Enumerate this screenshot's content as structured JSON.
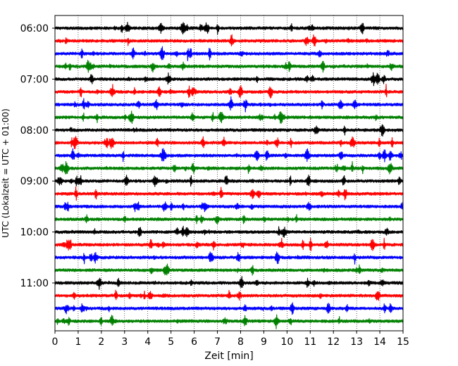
{
  "chart_data": {
    "type": "line",
    "title": "",
    "xlabel": "Zeit  [min]",
    "ylabel": "UTC (Lokalzeit = UTC + 01:00)",
    "xlim": [
      0,
      15
    ],
    "x_ticks": [
      "0",
      "1",
      "2",
      "3",
      "4",
      "5",
      "6",
      "7",
      "8",
      "9",
      "10",
      "11",
      "12",
      "13",
      "14",
      "15"
    ],
    "y_ticks": [
      "06:00",
      "07:00",
      "08:00",
      "09:00",
      "10:00",
      "11:00"
    ],
    "x_grid": "dotted vertical lines at each minute",
    "trace_interval_min": 15,
    "color_cycle": [
      "#000000",
      "#ff0000",
      "#0000ff",
      "#008000"
    ],
    "traces": [
      {
        "start": "06:00",
        "color": "#000000"
      },
      {
        "start": "06:15",
        "color": "#ff0000"
      },
      {
        "start": "06:30",
        "color": "#0000ff"
      },
      {
        "start": "06:45",
        "color": "#008000"
      },
      {
        "start": "07:00",
        "color": "#000000"
      },
      {
        "start": "07:15",
        "color": "#ff0000"
      },
      {
        "start": "07:30",
        "color": "#0000ff"
      },
      {
        "start": "07:45",
        "color": "#008000"
      },
      {
        "start": "08:00",
        "color": "#000000"
      },
      {
        "start": "08:15",
        "color": "#ff0000"
      },
      {
        "start": "08:30",
        "color": "#0000ff"
      },
      {
        "start": "08:45",
        "color": "#008000"
      },
      {
        "start": "09:00",
        "color": "#000000"
      },
      {
        "start": "09:15",
        "color": "#ff0000"
      },
      {
        "start": "09:30",
        "color": "#0000ff"
      },
      {
        "start": "09:45",
        "color": "#008000"
      },
      {
        "start": "10:00",
        "color": "#000000"
      },
      {
        "start": "10:15",
        "color": "#ff0000"
      },
      {
        "start": "10:30",
        "color": "#0000ff"
      },
      {
        "start": "10:45",
        "color": "#008000"
      },
      {
        "start": "11:00",
        "color": "#000000"
      },
      {
        "start": "11:15",
        "color": "#ff0000"
      },
      {
        "start": "11:30",
        "color": "#0000ff"
      },
      {
        "start": "11:45",
        "color": "#008000"
      }
    ]
  }
}
